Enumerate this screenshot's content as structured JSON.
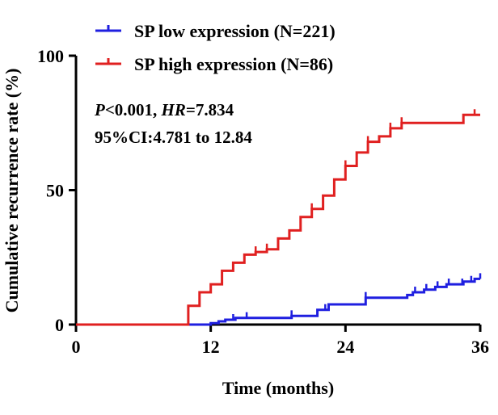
{
  "chart_data": {
    "type": "line",
    "subtype": "kaplan-meier cumulative incidence (step)",
    "xlabel": "Time (months)",
    "ylabel": "Cumulative recurrence rate (%)",
    "xlim": [
      0,
      36
    ],
    "ylim": [
      0,
      100
    ],
    "xticks": [
      0,
      12,
      24,
      36
    ],
    "yticks": [
      0,
      50,
      100
    ],
    "grid": false,
    "legend_position": "top-left",
    "annotation": {
      "p_label": "P",
      "p_value": "<0.001, ",
      "hr_label": "HR",
      "hr_value": "=7.834",
      "ci": "95%CI:4.781 to 12.84"
    },
    "series": [
      {
        "name": "SP low expression (N=221)",
        "color": "#1f1fe0",
        "steps": [
          [
            0,
            0
          ],
          [
            12,
            0.5
          ],
          [
            12.7,
            1.2
          ],
          [
            13.3,
            1.8
          ],
          [
            14.2,
            2.5
          ],
          [
            19.2,
            3.2
          ],
          [
            21.5,
            5.5
          ],
          [
            22.5,
            7.5
          ],
          [
            25.8,
            10
          ],
          [
            29.5,
            11
          ],
          [
            30,
            12
          ],
          [
            31,
            13
          ],
          [
            32,
            14
          ],
          [
            33,
            15
          ],
          [
            34.5,
            16
          ],
          [
            35.5,
            17
          ],
          [
            36,
            17
          ]
        ],
        "censor_times": [
          14,
          15.2,
          19.2,
          22.2,
          25.8,
          30.2,
          31.2,
          32.2,
          33.2,
          34.4,
          35.2,
          36
        ]
      },
      {
        "name": "SP high expression (N=86)",
        "color": "#e02020",
        "steps": [
          [
            0,
            0
          ],
          [
            10,
            7
          ],
          [
            11,
            12
          ],
          [
            12,
            15
          ],
          [
            13,
            20
          ],
          [
            14,
            23
          ],
          [
            15,
            26
          ],
          [
            16,
            27
          ],
          [
            17,
            28
          ],
          [
            18,
            32
          ],
          [
            19,
            35
          ],
          [
            20,
            40
          ],
          [
            21,
            43
          ],
          [
            22,
            48
          ],
          [
            23,
            54
          ],
          [
            24,
            59
          ],
          [
            25,
            64
          ],
          [
            26,
            68
          ],
          [
            27,
            70
          ],
          [
            28,
            73
          ],
          [
            29,
            75
          ],
          [
            34.5,
            78
          ],
          [
            36,
            78
          ]
        ],
        "censor_times": [
          16,
          17,
          21,
          24,
          26,
          28,
          29,
          35.5
        ]
      }
    ]
  }
}
